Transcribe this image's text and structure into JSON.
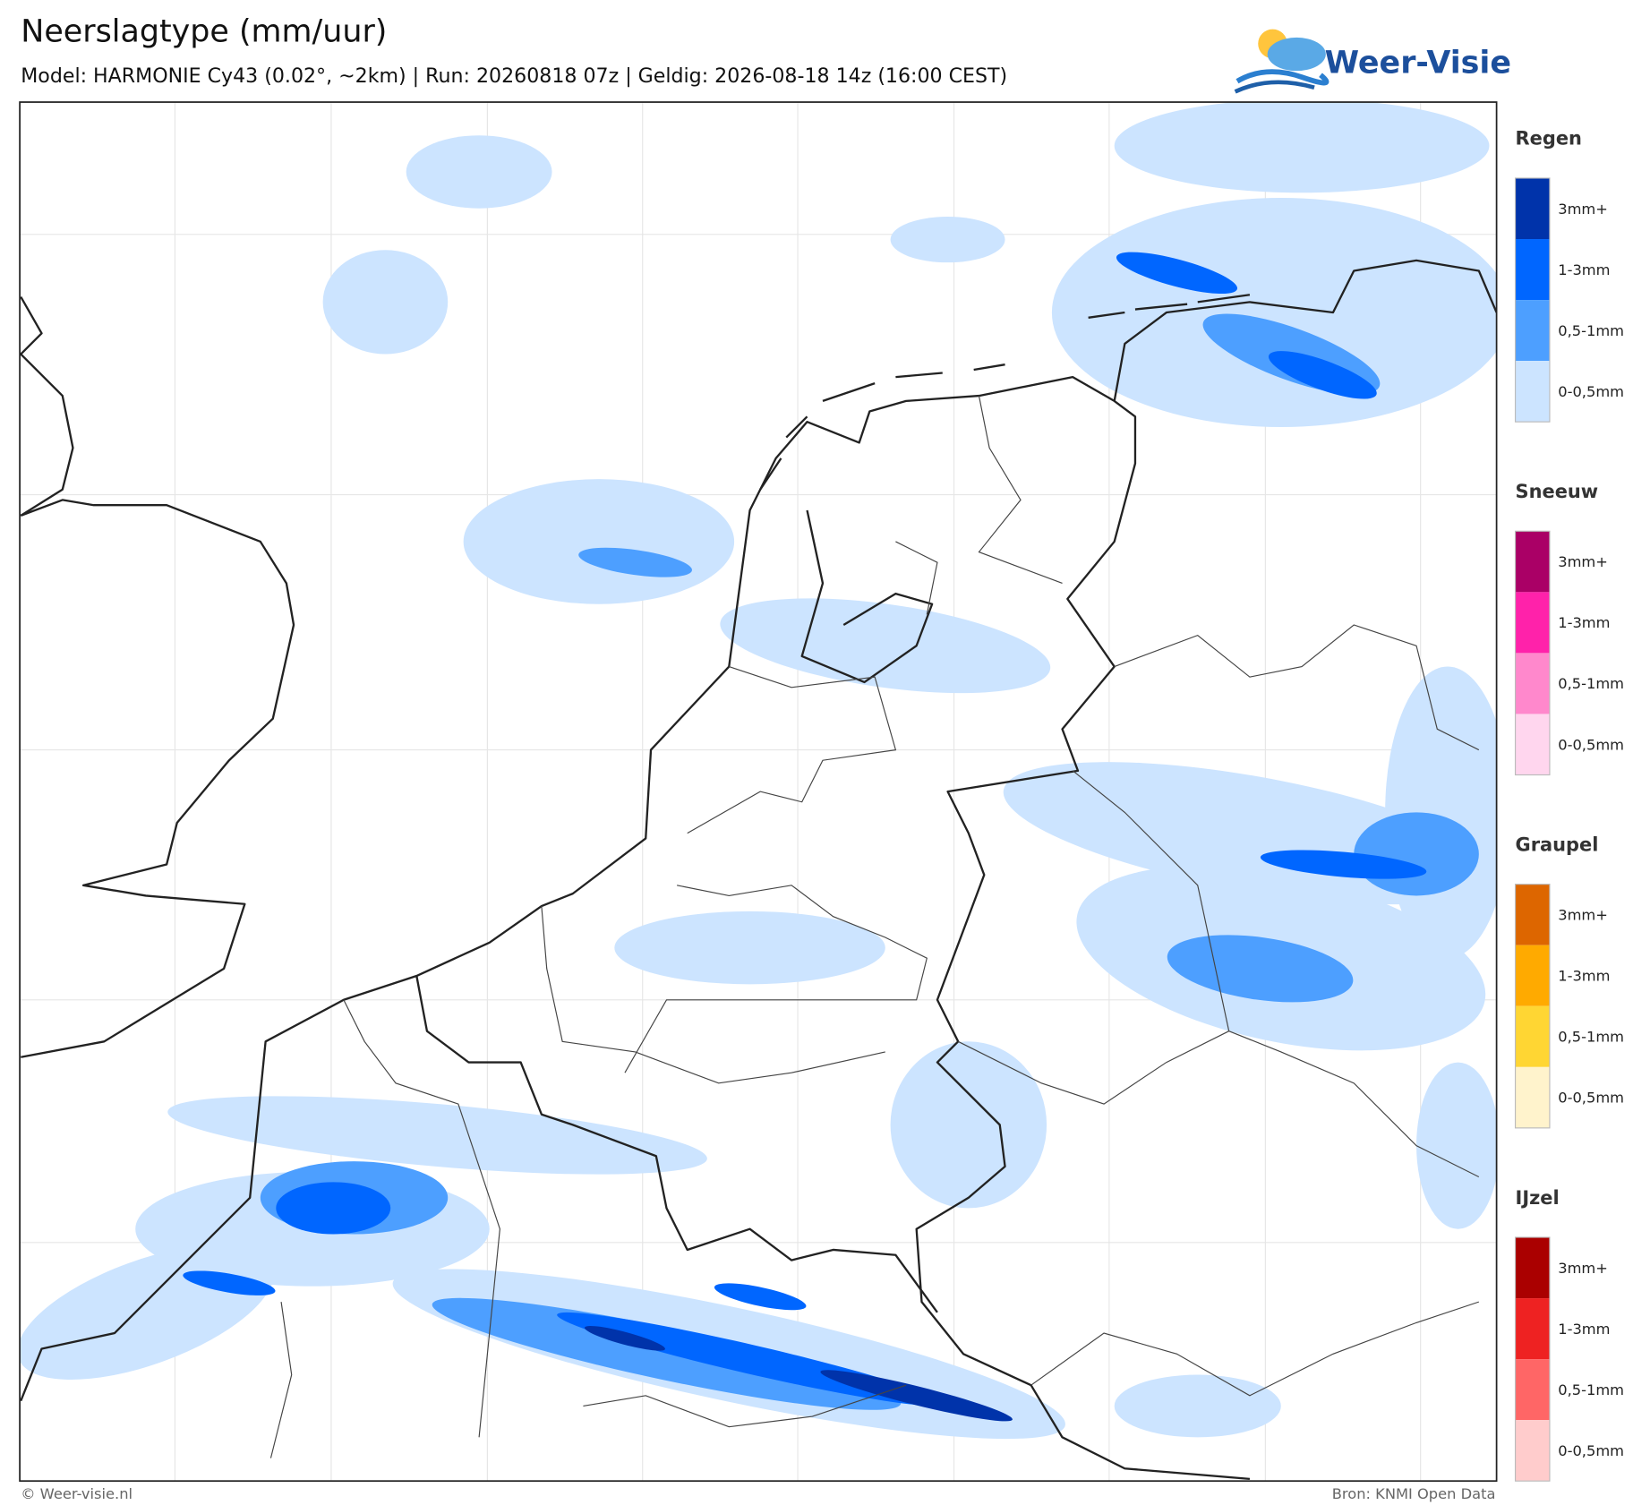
{
  "header": {
    "title": "Neerslagtype (mm/uur)",
    "subtitle": "Model: HARMONIE Cy43 (0.02°, ~2km)  |  Run: 20260818 07z  |  Geldig: 2026-08-18 14z (16:00 CEST)",
    "logo": "Weer-Visie"
  },
  "legend": [
    {
      "title": "Regen",
      "items": [
        {
          "label": "3mm+",
          "color": "#0033aa"
        },
        {
          "label": "1-3mm",
          "color": "#0066ff"
        },
        {
          "label": "0,5-1mm",
          "color": "#4d9fff"
        },
        {
          "label": "0-0,5mm",
          "color": "#cce4ff"
        }
      ]
    },
    {
      "title": "Sneeuw",
      "items": [
        {
          "label": "3mm+",
          "color": "#aa0066"
        },
        {
          "label": "1-3mm",
          "color": "#ff22aa"
        },
        {
          "label": "0,5-1mm",
          "color": "#ff88cc"
        },
        {
          "label": "0-0,5mm",
          "color": "#ffd6ee"
        }
      ]
    },
    {
      "title": "Graupel",
      "items": [
        {
          "label": "3mm+",
          "color": "#dd6600"
        },
        {
          "label": "1-3mm",
          "color": "#ffaa00"
        },
        {
          "label": "0,5-1mm",
          "color": "#ffd633"
        },
        {
          "label": "0-0,5mm",
          "color": "#fff3cc"
        }
      ]
    },
    {
      "title": "IJzel",
      "items": [
        {
          "label": "3mm+",
          "color": "#aa0000"
        },
        {
          "label": "1-3mm",
          "color": "#ee2222"
        },
        {
          "label": "0,5-1mm",
          "color": "#ff6666"
        },
        {
          "label": "0-0,5mm",
          "color": "#ffcccc"
        }
      ]
    }
  ],
  "footer": {
    "left": "© Weer-visie.nl",
    "right": "Bron: KNMI Open Data"
  }
}
